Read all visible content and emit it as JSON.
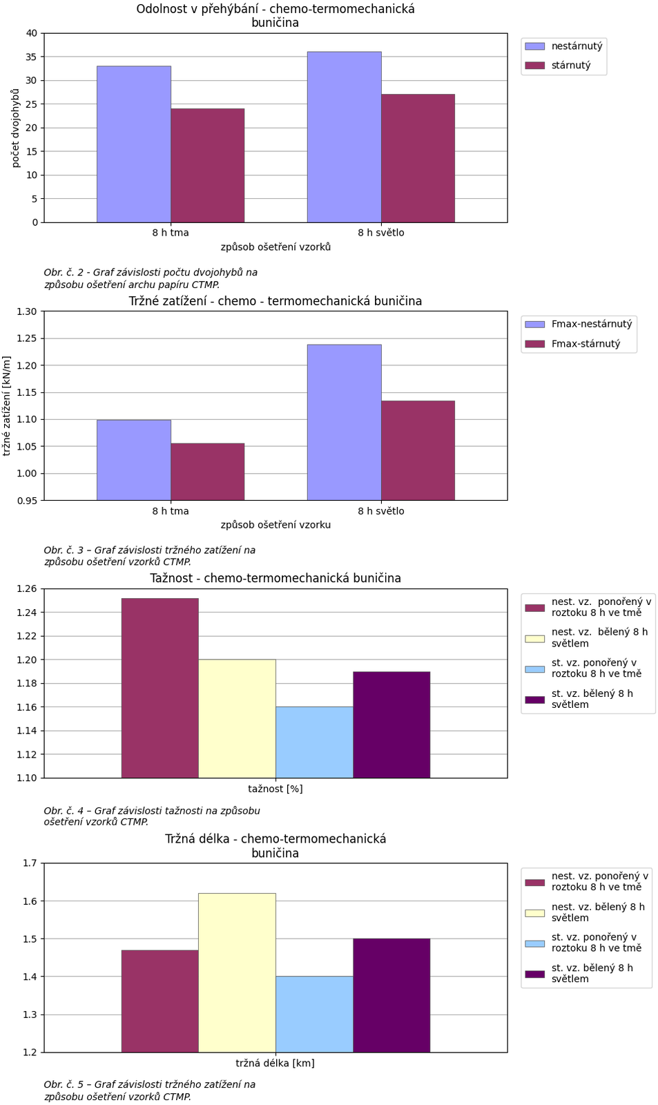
{
  "chart_data": [
    {
      "type": "bar",
      "title": "Odolnost v přehýbání - chemo-termomechanická\nbuničina",
      "subtitle": "Obr. č. 2 - Graf závislosti počtu dvojohybů na\nzpůsobu ošetření archu papíru CTMP.",
      "ylabel": "počet dvojohybů",
      "xlabel": "způsob ošetření vzorků",
      "ylim": [
        0,
        40
      ],
      "yticks": [
        0,
        5,
        10,
        15,
        20,
        25,
        30,
        35,
        40
      ],
      "grid": true,
      "legend": "right",
      "categories": [
        "8 h tma",
        "8 h světlo"
      ],
      "series": [
        {
          "name": "nestárnutý",
          "values": [
            33,
            36
          ],
          "color": "#9999FF"
        },
        {
          "name": "stárnutý",
          "values": [
            24,
            27
          ],
          "color": "#993366"
        }
      ]
    },
    {
      "type": "bar",
      "title": "Tržné zatížení - chemo - termomechanická buničina",
      "subtitle": "Obr. č. 3 – Graf závislosti tržného zatížení na\nzpůsobu ošetření vzorků CTMP.",
      "ylabel": "tržné zatížení [kN/m]",
      "xlabel": "způsob ošetření vzorku",
      "ylim": [
        0.95,
        1.3
      ],
      "yticks": [
        0.95,
        {
          "value": 1.0,
          "label": "1.00"
        },
        1.05,
        {
          "value": 1.1,
          "label": "1.10"
        },
        1.15,
        {
          "value": 1.2,
          "label": "1.20"
        },
        1.25,
        {
          "value": 1.3,
          "label": "1.30"
        }
      ],
      "grid": true,
      "legend": "right",
      "categories": [
        "8 h tma",
        "8 h světlo"
      ],
      "series": [
        {
          "name": "Fmax-nestárnutý",
          "values": [
            1.099,
            1.238
          ],
          "color": "#9999FF"
        },
        {
          "name": "Fmax-stárnutý",
          "values": [
            1.056,
            1.134
          ],
          "color": "#993366"
        }
      ]
    },
    {
      "type": "bar",
      "title": "Tažnost - chemo-termomechanická buničina",
      "subtitle": "Obr. č. 4 – Graf závislosti tažnosti na způsobu\nošetření vzorků CTMP.",
      "ylim": [
        1.1,
        1.26
      ],
      "yticks": [
        {
          "value": 1.1,
          "label": "1.10"
        },
        1.12,
        1.14,
        1.16,
        1.18,
        {
          "value": 1.2,
          "label": "1.20"
        },
        1.22,
        1.24,
        1.26
      ],
      "grid": true,
      "legend": "right",
      "categories": [
        "tažnost [%]"
      ],
      "series": [
        {
          "name": "nest. vz.  ponořený v\nroztoku 8 h ve tmě",
          "values": [
            1.252
          ],
          "color": "#993366"
        },
        {
          "name": "nest. vz.  bělený 8 h\nsvětlem",
          "values": [
            1.2
          ],
          "color": "#FFFFCC"
        },
        {
          "name": "st. vz. ponořený v\nroztoku 8 h ve tmě",
          "values": [
            1.16
          ],
          "color": "#99CCFF"
        },
        {
          "name": "st. vz. bělený 8 h\nsvětlem",
          "values": [
            1.19
          ],
          "color": "#660066"
        }
      ]
    },
    {
      "type": "bar",
      "title": "Tržná délka - chemo-termomechanická\nbuničina",
      "subtitle": "Obr. č. 5 – Graf závislosti tržného zatížení na\nzpůsobu ošetření vzorků CTMP.",
      "ylim": [
        1.2,
        1.7
      ],
      "yticks": [
        1.2,
        1.3,
        1.4,
        1.5,
        1.6,
        1.7
      ],
      "grid": true,
      "legend": "right",
      "categories": [
        "tržná délka [km]"
      ],
      "series": [
        {
          "name": "nest. vz. ponořený v\nroztoku 8 h ve tmě",
          "values": [
            1.47
          ],
          "color": "#993366"
        },
        {
          "name": "nest. vz. bělený 8 h\nsvětlem",
          "values": [
            1.62
          ],
          "color": "#FFFFCC"
        },
        {
          "name": "st. vz. ponořený v\nroztoku 8 h ve tmě",
          "values": [
            1.4
          ],
          "color": "#99CCFF"
        },
        {
          "name": "st. vz. bělený 8 h\nsvětlem",
          "values": [
            1.5
          ],
          "color": "#660066"
        }
      ]
    }
  ]
}
